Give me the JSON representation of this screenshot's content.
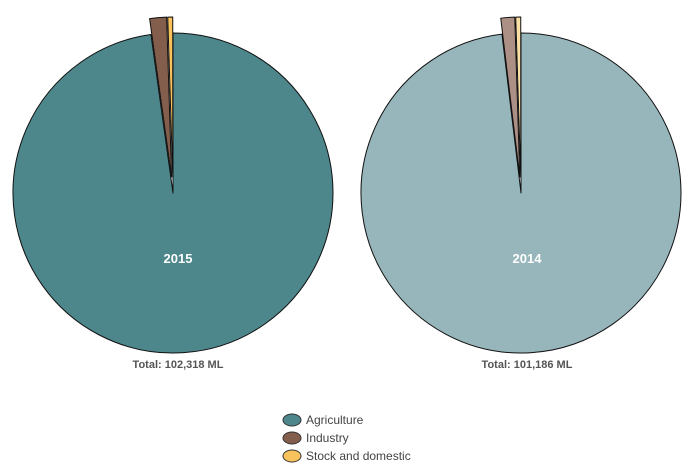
{
  "chart_data": [
    {
      "type": "pie",
      "label": "2015",
      "total_label": "Total: 102,318 ML",
      "slices": [
        {
          "name": "Agriculture",
          "value": 97.8,
          "color": "#4d868b"
        },
        {
          "name": "Industry",
          "value": 1.7,
          "color": "#845e4c",
          "exploded": true
        },
        {
          "name": "Stock and domestic",
          "value": 0.5,
          "color": "#f8c35c",
          "exploded": true
        }
      ]
    },
    {
      "type": "pie",
      "label": "2014",
      "total_label": "Total: 101,186 ML",
      "slices": [
        {
          "name": "Agriculture",
          "value": 98.1,
          "color": "#96b6bb"
        },
        {
          "name": "Industry",
          "value": 1.4,
          "color": "#ad9085",
          "exploded": true
        },
        {
          "name": "Stock and domestic",
          "value": 0.5,
          "color": "#fbe0a6",
          "exploded": true
        }
      ]
    }
  ],
  "legend": [
    {
      "name": "Agriculture",
      "color": "#4d868b"
    },
    {
      "name": "Industry",
      "color": "#845e4c"
    },
    {
      "name": "Stock and domestic",
      "color": "#f8c35c"
    }
  ]
}
